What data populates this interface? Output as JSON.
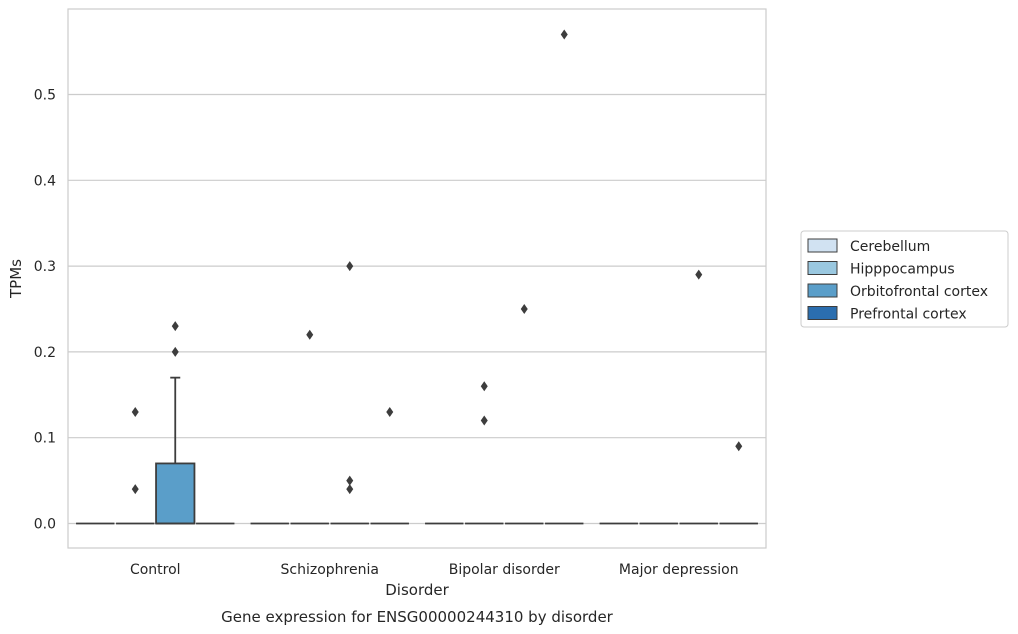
{
  "caption": "Gene expression for ENSG00000244310 by disorder",
  "chart_data": {
    "type": "box",
    "xlabel": "Disorder",
    "ylabel": "TPMs",
    "ylim": [
      -0.028,
      0.6
    ],
    "yticks": [
      0.0,
      0.1,
      0.2,
      0.3,
      0.4,
      0.5
    ],
    "ytick_labels": [
      "0.0",
      "0.1",
      "0.2",
      "0.3",
      "0.4",
      "0.5"
    ],
    "categories": [
      "Control",
      "Schizophrenia",
      "Bipolar disorder",
      "Major depression"
    ],
    "grid": "horizontal",
    "legend_position": "right",
    "series": [
      {
        "name": "Cerebellum",
        "color": "#d1e2f2",
        "boxes": [
          {
            "q1": 0,
            "median": 0,
            "q3": 0,
            "whisker_low": 0,
            "whisker_high": 0,
            "outliers": []
          },
          {
            "q1": 0,
            "median": 0,
            "q3": 0,
            "whisker_low": 0,
            "whisker_high": 0,
            "outliers": []
          },
          {
            "q1": 0,
            "median": 0,
            "q3": 0,
            "whisker_low": 0,
            "whisker_high": 0,
            "outliers": []
          },
          {
            "q1": 0,
            "median": 0,
            "q3": 0,
            "whisker_low": 0,
            "whisker_high": 0,
            "outliers": []
          }
        ]
      },
      {
        "name": "Hipppocampus",
        "color": "#9ac8e0",
        "boxes": [
          {
            "q1": 0,
            "median": 0,
            "q3": 0,
            "whisker_low": 0,
            "whisker_high": 0,
            "outliers": [
              0.04,
              0.13
            ]
          },
          {
            "q1": 0,
            "median": 0,
            "q3": 0,
            "whisker_low": 0,
            "whisker_high": 0,
            "outliers": [
              0.22
            ]
          },
          {
            "q1": 0,
            "median": 0,
            "q3": 0,
            "whisker_low": 0,
            "whisker_high": 0,
            "outliers": [
              0.12,
              0.16
            ]
          },
          {
            "q1": 0,
            "median": 0,
            "q3": 0,
            "whisker_low": 0,
            "whisker_high": 0,
            "outliers": []
          }
        ]
      },
      {
        "name": "Orbitofrontal cortex",
        "color": "#5a9ec9",
        "boxes": [
          {
            "q1": 0,
            "median": 0,
            "q3": 0.07,
            "whisker_low": 0,
            "whisker_high": 0.17,
            "outliers": [
              0.2,
              0.23
            ]
          },
          {
            "q1": 0,
            "median": 0,
            "q3": 0,
            "whisker_low": 0,
            "whisker_high": 0,
            "outliers": [
              0.04,
              0.05,
              0.3
            ]
          },
          {
            "q1": 0,
            "median": 0,
            "q3": 0,
            "whisker_low": 0,
            "whisker_high": 0,
            "outliers": [
              0.25
            ]
          },
          {
            "q1": 0,
            "median": 0,
            "q3": 0,
            "whisker_low": 0,
            "whisker_high": 0,
            "outliers": [
              0.29
            ]
          }
        ]
      },
      {
        "name": "Prefrontal cortex",
        "color": "#2b6eaf",
        "boxes": [
          {
            "q1": 0,
            "median": 0,
            "q3": 0,
            "whisker_low": 0,
            "whisker_high": 0,
            "outliers": []
          },
          {
            "q1": 0,
            "median": 0,
            "q3": 0,
            "whisker_low": 0,
            "whisker_high": 0,
            "outliers": [
              0.13
            ]
          },
          {
            "q1": 0,
            "median": 0,
            "q3": 0,
            "whisker_low": 0,
            "whisker_high": 0,
            "outliers": [
              0.57
            ]
          },
          {
            "q1": 0,
            "median": 0,
            "q3": 0,
            "whisker_low": 0,
            "whisker_high": 0,
            "outliers": [
              0.09
            ]
          }
        ]
      }
    ]
  }
}
